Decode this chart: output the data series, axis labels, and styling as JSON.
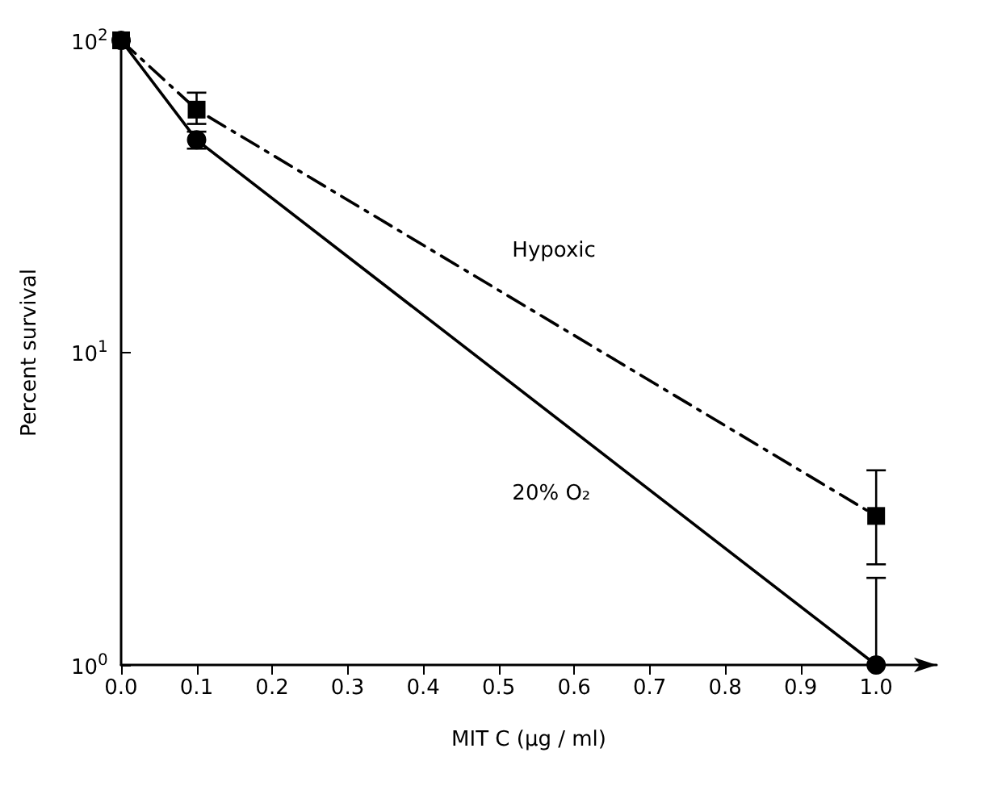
{
  "chart_data": {
    "type": "line",
    "xlabel": "MIT C (µg / ml)",
    "ylabel": "Percent survival",
    "x": [
      0,
      0.1,
      1.0
    ],
    "log": "y",
    "xlim": [
      0,
      1.08
    ],
    "xticks": [
      {
        "value": 0,
        "label": "0.0"
      },
      0.1,
      0.2,
      0.3,
      0.4,
      0.5,
      0.6,
      0.7,
      0.8,
      0.9,
      {
        "value": 1,
        "label": "1.0"
      }
    ],
    "ylim": [
      1,
      100
    ],
    "yticks": [
      {
        "value": 1,
        "label": "10$^{0}$"
      },
      {
        "value": 10,
        "label": "10$^{1}$"
      },
      {
        "value": 100,
        "label": "10$^{2}$"
      }
    ],
    "grid": false,
    "legend": false,
    "series": [
      {
        "name": "20% O₂",
        "color": "#000000",
        "marker": "circle",
        "line_style": "solid",
        "values": [
          100,
          48,
          1
        ],
        "errors": [
          null,
          [
            45,
            51
          ],
          [
            1,
            1.9
          ]
        ]
      },
      {
        "name": "Hypoxic",
        "color": "#000000",
        "marker": "square",
        "line_style": "dashed",
        "values": [
          100,
          60,
          3
        ],
        "errors": [
          null,
          [
            54,
            68
          ],
          [
            2.1,
            4.2
          ]
        ]
      }
    ]
  }
}
